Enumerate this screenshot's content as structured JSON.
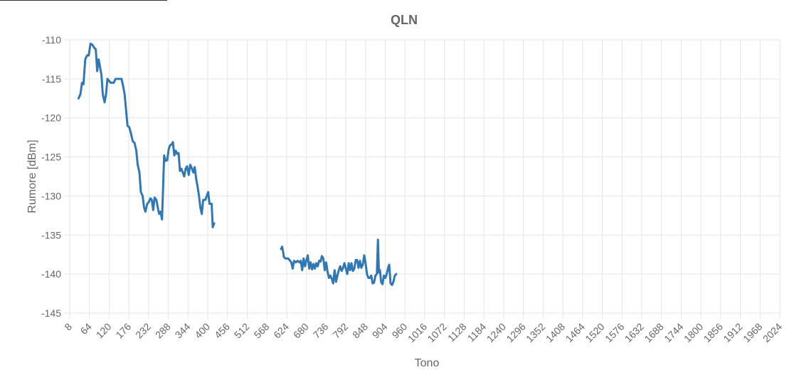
{
  "colors": {
    "series": "#2f77b5",
    "grid": "#e5e5e5",
    "text": "#666666"
  },
  "chart_data": {
    "type": "line",
    "title": "QLN",
    "xlabel": "Tono",
    "ylabel": "Rumore [dBm]",
    "xlim": [
      8,
      2024
    ],
    "ylim": [
      -145,
      -110
    ],
    "x_ticks": [
      "8",
      "64",
      "120",
      "176",
      "232",
      "288",
      "344",
      "400",
      "456",
      "512",
      "568",
      "624",
      "680",
      "736",
      "792",
      "848",
      "904",
      "960",
      "1016",
      "1072",
      "1128",
      "1184",
      "1240",
      "1296",
      "1352",
      "1408",
      "1464",
      "1520",
      "1576",
      "1632",
      "1688",
      "1744",
      "1800",
      "1856",
      "1912",
      "1968",
      "2024"
    ],
    "y_ticks": [
      "-110",
      "-115",
      "-120",
      "-125",
      "-130",
      "-135",
      "-140",
      "-145"
    ],
    "grid": true,
    "legend": "none",
    "series": [
      {
        "segments": [
          [
            [
              33,
              -117.5
            ],
            [
              38,
              -117
            ],
            [
              43,
              -115.5
            ],
            [
              47,
              -115.7
            ],
            [
              52,
              -112.5
            ],
            [
              57,
              -112
            ],
            [
              62,
              -112
            ],
            [
              67,
              -110.5
            ],
            [
              72,
              -110.6
            ],
            [
              77,
              -111
            ],
            [
              82,
              -111.2
            ],
            [
              86,
              -114
            ],
            [
              90,
              -112.5
            ],
            [
              94,
              -113.5
            ],
            [
              98,
              -114.5
            ],
            [
              102,
              -117
            ],
            [
              107,
              -118
            ],
            [
              111,
              -117
            ],
            [
              115,
              -115
            ],
            [
              119,
              -115.2
            ],
            [
              124,
              -115.5
            ],
            [
              133,
              -115.5
            ],
            [
              138,
              -115
            ],
            [
              150,
              -115
            ],
            [
              155,
              -115
            ],
            [
              160,
              -116
            ],
            [
              164,
              -117
            ],
            [
              168,
              -119
            ],
            [
              172,
              -121
            ],
            [
              177,
              -121.2
            ],
            [
              182,
              -122
            ],
            [
              187,
              -123
            ],
            [
              192,
              -123.2
            ],
            [
              197,
              -124.2
            ],
            [
              201,
              -126
            ],
            [
              206,
              -127
            ],
            [
              210,
              -129.5
            ],
            [
              215,
              -130
            ],
            [
              219,
              -131.5
            ],
            [
              223,
              -132
            ],
            [
              228,
              -131
            ],
            [
              232,
              -130.8
            ],
            [
              237,
              -130.3
            ],
            [
              241,
              -130.5
            ],
            [
              245,
              -131.8
            ],
            [
              249,
              -130.2
            ],
            [
              254,
              -130.5
            ],
            [
              258,
              -131.5
            ],
            [
              262,
              -132.3
            ],
            [
              266,
              -132
            ],
            [
              270,
              -133
            ],
            [
              273,
              -129
            ],
            [
              276,
              -124.8
            ],
            [
              280,
              -125.5
            ],
            [
              285,
              -125.4
            ],
            [
              289,
              -124
            ],
            [
              293,
              -123.5
            ],
            [
              297,
              -123.4
            ],
            [
              301,
              -123.1
            ],
            [
              305,
              -124.8
            ],
            [
              309,
              -124.2
            ],
            [
              313,
              -124.6
            ],
            [
              317,
              -124.5
            ],
            [
              321,
              -126.8
            ],
            [
              325,
              -126.5
            ],
            [
              329,
              -127
            ],
            [
              333,
              -127.5
            ],
            [
              337,
              -126.5
            ],
            [
              341,
              -126.2
            ],
            [
              346,
              -127.3
            ],
            [
              350,
              -126
            ],
            [
              355,
              -126.5
            ],
            [
              359,
              -127
            ],
            [
              363,
              -126.3
            ],
            [
              367,
              -127.8
            ],
            [
              371,
              -128.8
            ],
            [
              375,
              -130
            ],
            [
              379,
              -131.5
            ],
            [
              383,
              -132.3
            ],
            [
              387,
              -130.5
            ],
            [
              393,
              -130.5
            ],
            [
              397,
              -130
            ],
            [
              401,
              -129.5
            ],
            [
              405,
              -131
            ],
            [
              411,
              -131
            ],
            [
              414,
              -134
            ],
            [
              418,
              -133.5
            ]
          ],
          [
            [
              608,
              -136.8
            ],
            [
              611,
              -136.5
            ],
            [
              614,
              -137.2
            ],
            [
              616,
              -137.8
            ],
            [
              620,
              -138
            ],
            [
              628,
              -138
            ],
            [
              632,
              -138.2
            ],
            [
              637,
              -138.5
            ],
            [
              641,
              -139.3
            ],
            [
              645,
              -138.3
            ],
            [
              650,
              -138.5
            ],
            [
              655,
              -138.3
            ],
            [
              660,
              -138.5
            ],
            [
              664,
              -138.3
            ],
            [
              668,
              -139.5
            ],
            [
              672,
              -138
            ],
            [
              676,
              -139
            ],
            [
              680,
              -138.2
            ],
            [
              684,
              -137.6
            ],
            [
              688,
              -139.3
            ],
            [
              692,
              -138.5
            ],
            [
              696,
              -139.4
            ],
            [
              700,
              -138.7
            ],
            [
              704,
              -139.3
            ],
            [
              708,
              -138.6
            ],
            [
              712,
              -139
            ],
            [
              716,
              -138.3
            ],
            [
              720,
              -138.4
            ],
            [
              724,
              -137.7
            ],
            [
              728,
              -138
            ],
            [
              732,
              -139.5
            ],
            [
              736,
              -138.5
            ],
            [
              740,
              -139.7
            ],
            [
              744,
              -140.5
            ],
            [
              748,
              -140.2
            ],
            [
              752,
              -140.6
            ],
            [
              756,
              -141.2
            ],
            [
              760,
              -139.5
            ],
            [
              764,
              -141
            ],
            [
              768,
              -140.2
            ],
            [
              772,
              -139.5
            ],
            [
              776,
              -139
            ],
            [
              780,
              -139.6
            ],
            [
              784,
              -139.2
            ],
            [
              788,
              -138.6
            ],
            [
              792,
              -139.3
            ],
            [
              796,
              -140
            ],
            [
              800,
              -138.6
            ],
            [
              804,
              -139.5
            ],
            [
              808,
              -138.6
            ],
            [
              812,
              -139.6
            ],
            [
              816,
              -139.3
            ],
            [
              820,
              -138.2
            ],
            [
              824,
              -138.2
            ],
            [
              828,
              -139.2
            ],
            [
              832,
              -138.3
            ],
            [
              836,
              -139.2
            ],
            [
              840,
              -138.8
            ],
            [
              844,
              -137.6
            ],
            [
              848,
              -138.6
            ],
            [
              852,
              -140
            ],
            [
              856,
              -140.5
            ],
            [
              860,
              -140.5
            ],
            [
              864,
              -140.2
            ],
            [
              868,
              -141.2
            ],
            [
              872,
              -141.1
            ],
            [
              876,
              -140.2
            ],
            [
              880,
              -140
            ],
            [
              883,
              -135.6
            ],
            [
              886,
              -139.8
            ],
            [
              889,
              -139.5
            ],
            [
              892,
              -141
            ],
            [
              896,
              -141.3
            ],
            [
              900,
              -140.2
            ],
            [
              904,
              -140.5
            ],
            [
              908,
              -140
            ],
            [
              912,
              -139.2
            ],
            [
              915,
              -138.8
            ],
            [
              919,
              -141.2
            ],
            [
              923,
              -141.4
            ],
            [
              927,
              -141
            ],
            [
              931,
              -140.2
            ],
            [
              935,
              -140
            ]
          ]
        ]
      }
    ]
  }
}
